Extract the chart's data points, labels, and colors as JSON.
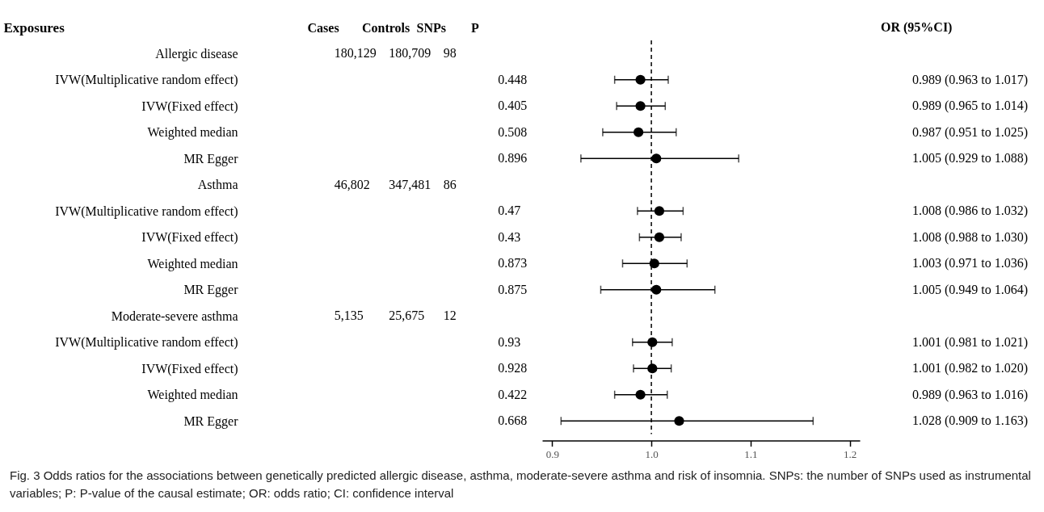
{
  "chart_data": [
    {
      "type": "heatmap",
      "ylabel": "Exposures",
      "categories": [
        "Cases",
        "Controls",
        "SNPs",
        "P"
      ],
      "y_categories": [
        "Allergic disease",
        "IVW(Multiplicative random effect)",
        "IVW(Fixed effect)",
        "Weighted median",
        "MR Egger",
        "Asthma",
        "IVW(Multiplicative random effect)",
        "IVW(Fixed effect)",
        "Weighted median",
        "MR Egger",
        "Moderate-severe asthma",
        "IVW(Multiplicative random effect)",
        "IVW(Fixed effect)",
        "Weighted median",
        "MR Egger"
      ],
      "cells": [
        [
          null,
          null,
          null,
          null
        ],
        [
          null,
          null,
          null,
          null
        ],
        [
          null,
          null,
          null,
          null
        ],
        [
          null,
          null,
          null,
          null
        ],
        [
          null,
          null,
          null,
          null
        ],
        [
          null,
          null,
          null,
          null
        ],
        [
          null,
          null,
          null,
          null
        ],
        [
          null,
          null,
          null,
          null
        ],
        [
          null,
          null,
          null,
          null
        ],
        [
          null,
          null,
          null,
          null
        ],
        [
          null,
          null,
          null,
          null
        ],
        [
          null,
          null,
          null,
          null
        ],
        [
          null,
          null,
          null,
          null
        ],
        [
          null,
          null,
          null,
          null
        ],
        [
          null,
          null,
          null,
          null
        ]
      ],
      "cell_labels": [
        [
          "180,129",
          "180,709",
          "98",
          null
        ],
        [
          null,
          null,
          null,
          "0.448"
        ],
        [
          null,
          null,
          null,
          "0.405"
        ],
        [
          null,
          null,
          null,
          "0.508"
        ],
        [
          null,
          null,
          null,
          "0.896"
        ],
        [
          "46,802",
          "347,481",
          "86",
          null
        ],
        [
          null,
          null,
          null,
          "0.47"
        ],
        [
          null,
          null,
          null,
          "0.43"
        ],
        [
          null,
          null,
          null,
          "0.873"
        ],
        [
          null,
          null,
          null,
          "0.875"
        ],
        [
          "5,135",
          "25,675",
          "12",
          null
        ],
        [
          null,
          null,
          null,
          "0.93"
        ],
        [
          null,
          null,
          null,
          "0.928"
        ],
        [
          null,
          null,
          null,
          "0.422"
        ],
        [
          null,
          null,
          null,
          "0.668"
        ]
      ],
      "annotations": [
        "Fig. 3  Odds ratios for the associations between genetically predicted allergic disease, asthma, moderate-severe asthma and risk of insomnia. SNPs: the number of SNPs used as instrumental variables; P: P-value of the causal estimate; OR: odds ratio; CI: confidence interval"
      ]
    },
    {
      "type": "scatter",
      "orientation": "horizontal",
      "y2label": "OR (95%CI)",
      "color": "#000000",
      "marker": "circle",
      "tick_labels": "x",
      "categories": [
        null,
        null,
        null,
        null,
        null,
        null,
        null,
        null,
        null,
        null,
        null,
        null,
        null,
        null,
        null
      ],
      "values": [
        null,
        0.989,
        0.989,
        0.987,
        1.005,
        null,
        1.008,
        1.008,
        1.003,
        1.005,
        null,
        1.001,
        1.001,
        0.989,
        1.028
      ],
      "errors": [
        null,
        [
          0.963,
          1.017
        ],
        [
          0.965,
          1.014
        ],
        [
          0.951,
          1.025
        ],
        [
          0.929,
          1.088
        ],
        null,
        [
          0.986,
          1.032
        ],
        [
          0.988,
          1.03
        ],
        [
          0.971,
          1.036
        ],
        [
          0.949,
          1.064
        ],
        null,
        [
          0.981,
          1.021
        ],
        [
          0.982,
          1.02
        ],
        [
          0.963,
          1.016
        ],
        [
          0.909,
          1.163
        ]
      ],
      "value_labels": [
        null,
        "0.989 (0.963 to 1.017)",
        "0.989 (0.965 to 1.014)",
        "0.987 (0.951 to 1.025)",
        "1.005 (0.929 to 1.088)",
        null,
        "1.008 (0.986 to 1.032)",
        "1.008 (0.988 to 1.030)",
        "1.003 (0.971 to 1.036)",
        "1.005 (0.949 to 1.064)",
        null,
        "1.001 (0.981 to 1.021)",
        "1.001 (0.982 to 1.020)",
        "0.989 (0.963 to 1.016)",
        "1.028 (0.909 to 1.163)"
      ],
      "xlim": [
        0.89,
        1.21
      ],
      "xticks": [
        0.9,
        {
          "value": 1,
          "label": "1.0"
        },
        1.1,
        1.2
      ],
      "ref_lines": [
        {
          "axis": "x",
          "value": 1,
          "line_style": "dashed"
        }
      ]
    }
  ]
}
